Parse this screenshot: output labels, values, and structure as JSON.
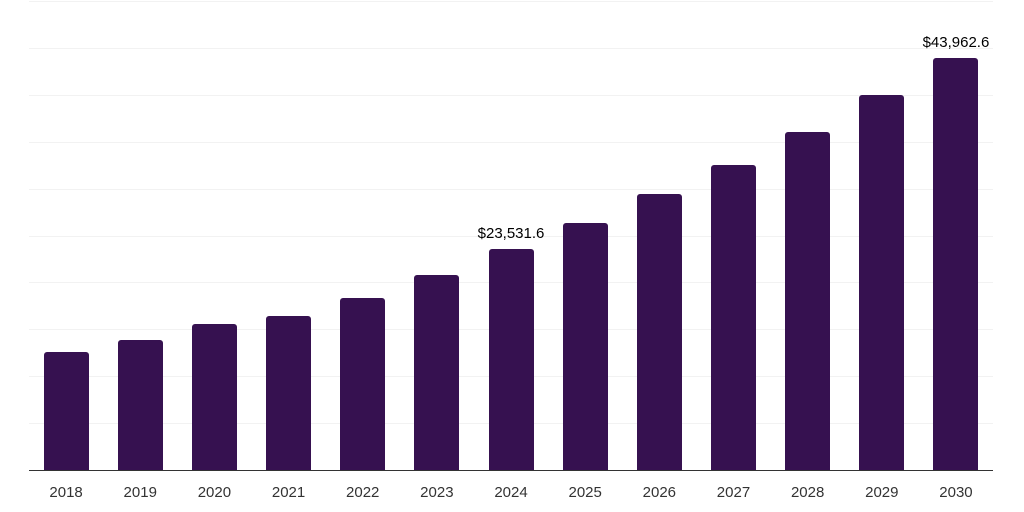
{
  "chart_data": {
    "type": "bar",
    "title": "",
    "xlabel": "",
    "ylabel": "",
    "categories": [
      "2018",
      "2019",
      "2020",
      "2021",
      "2022",
      "2023",
      "2024",
      "2025",
      "2026",
      "2027",
      "2028",
      "2029",
      "2030"
    ],
    "values": [
      12550,
      13900,
      15550,
      16400,
      18350,
      20800,
      23531.6,
      26300,
      29400,
      32550,
      36050,
      39950,
      43962.6
    ],
    "bar_labels": [
      "",
      "",
      "",
      "",
      "",
      "",
      "$23,531.6",
      "",
      "",
      "",
      "",
      "",
      "$43,962.6"
    ],
    "ylim": [
      0,
      50000
    ],
    "grid_step": 5000,
    "grid": "on",
    "legend": "none",
    "colors": {
      "bar": "#361150",
      "gridline": "#F2F2F2",
      "axis_line": "#333333",
      "tick_label": "#333333",
      "value_label": "#000000"
    }
  }
}
